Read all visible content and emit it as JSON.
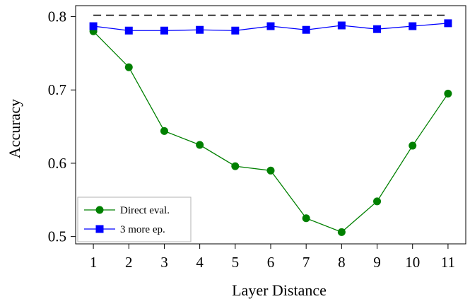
{
  "chart_data": {
    "type": "line",
    "title": "",
    "xlabel": "Layer Distance",
    "ylabel": "Accuracy",
    "x": [
      1,
      2,
      3,
      4,
      5,
      6,
      7,
      8,
      9,
      10,
      11
    ],
    "xlim": [
      0.5,
      11.5
    ],
    "ylim": [
      0.49,
      0.815
    ],
    "yticks": [
      0.5,
      0.6,
      0.7,
      0.8
    ],
    "ytick_labels": [
      "0.5",
      "0.6",
      "0.7",
      "0.8"
    ],
    "grid": false,
    "legend_position": "bottom-left",
    "reference_line": {
      "y": 0.802,
      "style": "dashed",
      "color": "#000000"
    },
    "series": [
      {
        "name": "Direct eval.",
        "color": "#008000",
        "marker": "circle",
        "values": [
          0.78,
          0.731,
          0.644,
          0.625,
          0.596,
          0.59,
          0.525,
          0.506,
          0.548,
          0.624,
          0.695
        ]
      },
      {
        "name": "3 more ep.",
        "color": "#0000ff",
        "marker": "square",
        "values": [
          0.787,
          0.781,
          0.781,
          0.782,
          0.781,
          0.787,
          0.782,
          0.788,
          0.783,
          0.787,
          0.791
        ]
      }
    ]
  }
}
